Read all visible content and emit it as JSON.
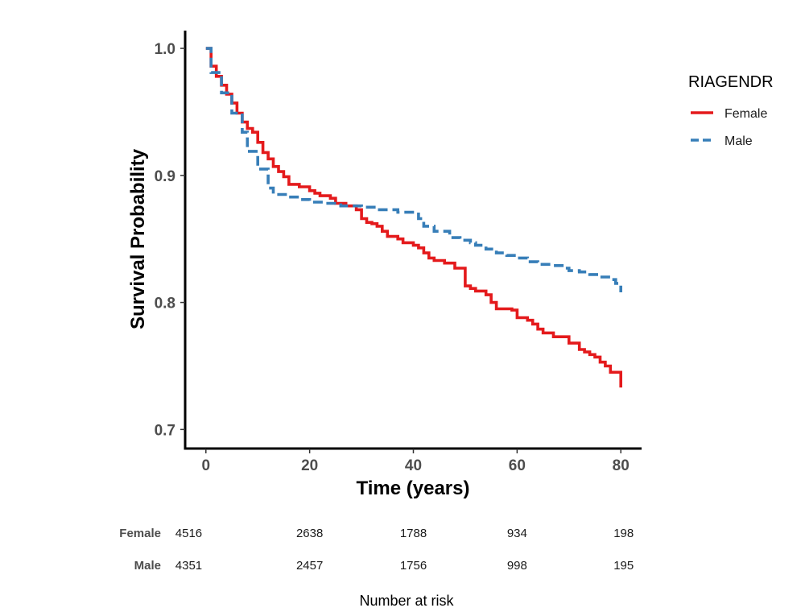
{
  "chart_data": {
    "type": "line",
    "title": "",
    "xlabel": "Time (years)",
    "ylabel": "Survival Probability",
    "xlim": [
      -4,
      84
    ],
    "ylim": [
      0.685,
      1.014
    ],
    "x_ticks": [
      0,
      20,
      40,
      60,
      80
    ],
    "y_ticks": [
      0.7,
      0.8,
      0.9,
      1.0
    ],
    "x_tick_labels": [
      "0",
      "20",
      "40",
      "60",
      "80"
    ],
    "y_tick_labels": [
      "0.7",
      "0.8",
      "0.9",
      "1.0"
    ],
    "grid": false,
    "legend": {
      "title": "RIAGENDR",
      "position": "right"
    },
    "series": [
      {
        "name": "Female",
        "color": "#e41a1c",
        "dash": "solid",
        "points": [
          [
            0,
            1.0
          ],
          [
            1,
            0.986
          ],
          [
            2,
            0.978
          ],
          [
            3,
            0.971
          ],
          [
            4,
            0.964
          ],
          [
            5,
            0.957
          ],
          [
            6,
            0.949
          ],
          [
            7,
            0.942
          ],
          [
            8,
            0.937
          ],
          [
            9,
            0.934
          ],
          [
            10,
            0.926
          ],
          [
            11,
            0.918
          ],
          [
            12,
            0.913
          ],
          [
            13,
            0.907
          ],
          [
            14,
            0.903
          ],
          [
            15,
            0.899
          ],
          [
            16,
            0.893
          ],
          [
            18,
            0.891
          ],
          [
            20,
            0.888
          ],
          [
            21,
            0.886
          ],
          [
            22,
            0.884
          ],
          [
            24,
            0.882
          ],
          [
            25,
            0.878
          ],
          [
            27,
            0.876
          ],
          [
            29,
            0.873
          ],
          [
            30,
            0.866
          ],
          [
            31,
            0.863
          ],
          [
            32,
            0.862
          ],
          [
            33,
            0.86
          ],
          [
            34,
            0.856
          ],
          [
            35,
            0.852
          ],
          [
            37,
            0.85
          ],
          [
            38,
            0.847
          ],
          [
            40,
            0.845
          ],
          [
            41,
            0.843
          ],
          [
            42,
            0.839
          ],
          [
            43,
            0.835
          ],
          [
            44,
            0.833
          ],
          [
            46,
            0.831
          ],
          [
            48,
            0.827
          ],
          [
            50,
            0.813
          ],
          [
            51,
            0.811
          ],
          [
            52,
            0.809
          ],
          [
            54,
            0.806
          ],
          [
            55,
            0.8
          ],
          [
            56,
            0.795
          ],
          [
            59,
            0.794
          ],
          [
            60,
            0.788
          ],
          [
            62,
            0.786
          ],
          [
            63,
            0.783
          ],
          [
            64,
            0.779
          ],
          [
            65,
            0.776
          ],
          [
            67,
            0.773
          ],
          [
            70,
            0.768
          ],
          [
            72,
            0.763
          ],
          [
            73,
            0.761
          ],
          [
            74,
            0.759
          ],
          [
            75,
            0.757
          ],
          [
            76,
            0.753
          ],
          [
            77,
            0.75
          ],
          [
            78,
            0.745
          ],
          [
            80,
            0.733
          ]
        ]
      },
      {
        "name": "Male",
        "color": "#377eb8",
        "dash": "dashed",
        "points": [
          [
            0,
            1.0
          ],
          [
            1,
            0.981
          ],
          [
            3,
            0.965
          ],
          [
            5,
            0.949
          ],
          [
            7,
            0.934
          ],
          [
            8,
            0.919
          ],
          [
            10,
            0.905
          ],
          [
            12,
            0.89
          ],
          [
            13,
            0.885
          ],
          [
            16,
            0.883
          ],
          [
            18,
            0.881
          ],
          [
            20,
            0.879
          ],
          [
            23,
            0.878
          ],
          [
            26,
            0.876
          ],
          [
            30,
            0.875
          ],
          [
            33,
            0.873
          ],
          [
            37,
            0.871
          ],
          [
            41,
            0.866
          ],
          [
            42,
            0.86
          ],
          [
            44,
            0.856
          ],
          [
            47,
            0.851
          ],
          [
            49,
            0.849
          ],
          [
            51,
            0.847
          ],
          [
            52,
            0.845
          ],
          [
            54,
            0.842
          ],
          [
            56,
            0.839
          ],
          [
            58,
            0.837
          ],
          [
            60,
            0.835
          ],
          [
            62,
            0.832
          ],
          [
            64,
            0.83
          ],
          [
            67,
            0.829
          ],
          [
            69,
            0.827
          ],
          [
            70,
            0.825
          ],
          [
            72,
            0.824
          ],
          [
            74,
            0.822
          ],
          [
            76,
            0.82
          ],
          [
            78,
            0.818
          ],
          [
            79,
            0.815
          ],
          [
            80,
            0.808
          ]
        ]
      }
    ],
    "risk_table": {
      "title": "Number at risk",
      "times": [
        0,
        20,
        40,
        60,
        80
      ],
      "rows": [
        {
          "group": "Female",
          "values": [
            "4516",
            "2638",
            "1788",
            "934",
            "198"
          ]
        },
        {
          "group": "Male",
          "values": [
            "4351",
            "2457",
            "1756",
            "998",
            "195"
          ]
        }
      ]
    }
  }
}
